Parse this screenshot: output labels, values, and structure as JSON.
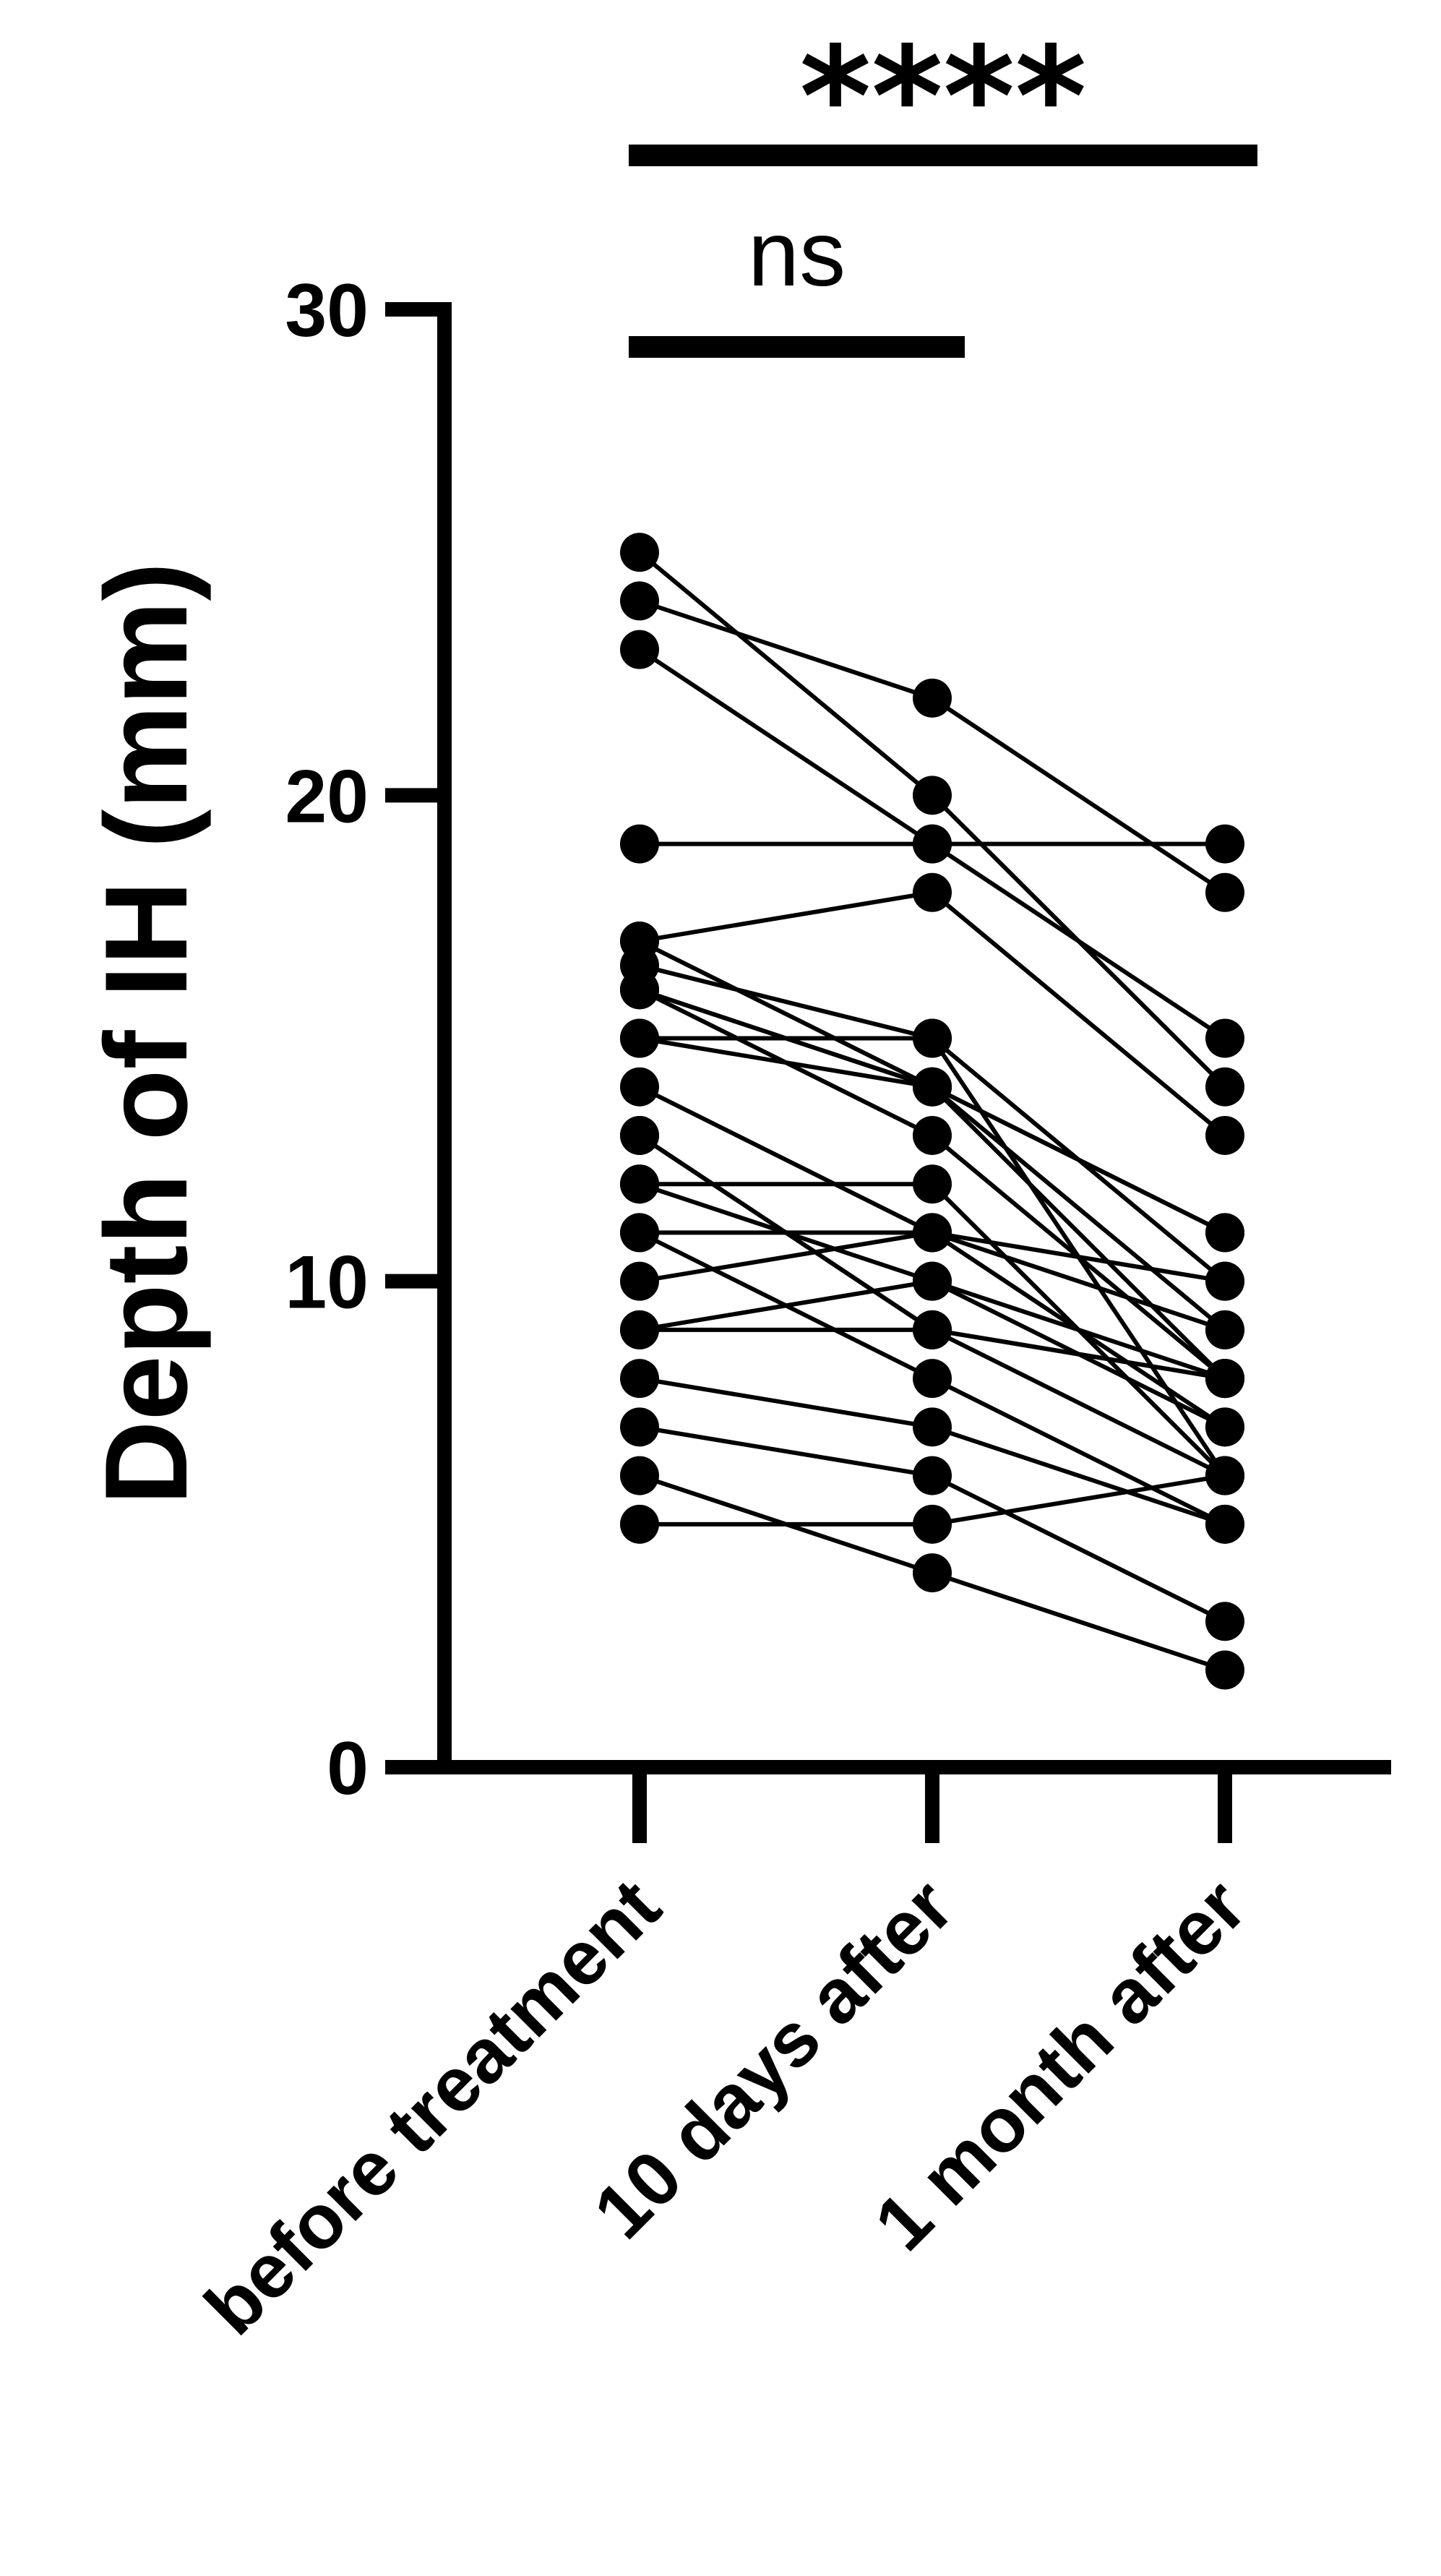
{
  "chart_data": {
    "type": "line",
    "title": "",
    "ylabel": "Depth of IH (mm)",
    "xlabel": "",
    "categories": [
      "before treatment",
      "10 days after",
      "1 month after"
    ],
    "ylim": [
      0,
      30
    ],
    "yticks": [
      {
        "value": 0,
        "label": "0"
      },
      {
        "value": 10,
        "label": "10"
      },
      {
        "value": 20,
        "label": "20"
      },
      {
        "value": 30,
        "label": "30"
      }
    ],
    "grid": false,
    "legend": "none",
    "marker": "circle",
    "color": "#000000",
    "subjects": [
      [
        25,
        20,
        14
      ],
      [
        24,
        22,
        18
      ],
      [
        23,
        19,
        15
      ],
      [
        19,
        19,
        19
      ],
      [
        17,
        14,
        11
      ],
      [
        16.5,
        15,
        10
      ],
      [
        16,
        14,
        9
      ],
      [
        16,
        13,
        8
      ],
      [
        15,
        15,
        6
      ],
      [
        15,
        14,
        8
      ],
      [
        14,
        11,
        7
      ],
      [
        13,
        9,
        8
      ],
      [
        12,
        12,
        6
      ],
      [
        11,
        11,
        10
      ],
      [
        11,
        8,
        5
      ],
      [
        10,
        11,
        9
      ],
      [
        9,
        10,
        7
      ],
      [
        8,
        7,
        5
      ],
      [
        7,
        6,
        3
      ],
      [
        6,
        4,
        2
      ],
      [
        5,
        5,
        6
      ],
      [
        17,
        18,
        13
      ],
      [
        16,
        14,
        11
      ],
      [
        13,
        9,
        8
      ],
      [
        12,
        10,
        8
      ],
      [
        9,
        9,
        6
      ]
    ],
    "annotations": [
      {
        "from": 0,
        "to": 1,
        "label": "ns"
      },
      {
        "from": 0,
        "to": 2,
        "label": "****"
      }
    ]
  }
}
